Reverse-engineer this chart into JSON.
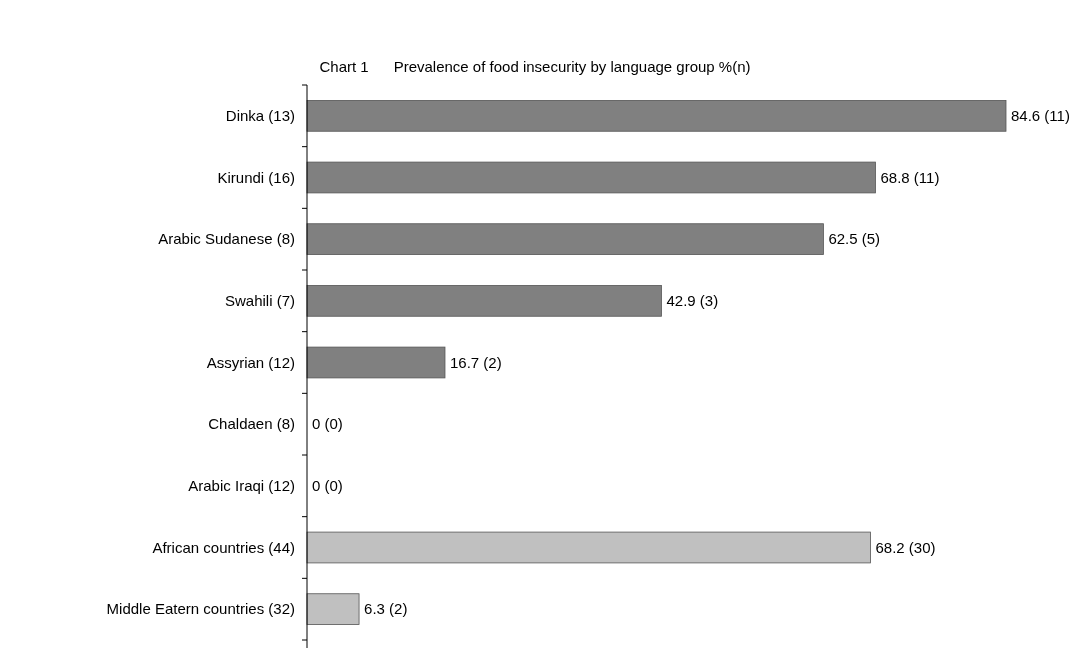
{
  "chart_data": {
    "type": "bar",
    "orientation": "horizontal",
    "title": "Chart 1      Prevalence of food insecurity by language group %(n)",
    "categories": [
      "Dinka (13)",
      "Kirundi (16)",
      "Arabic Sudanese (8)",
      "Swahili (7)",
      "Assyrian (12)",
      "Chaldaen (8)",
      "Arabic Iraqi (12)",
      "African countries (44)",
      "Middle Eatern countries (32)"
    ],
    "values": [
      84.6,
      68.8,
      62.5,
      42.9,
      16.7,
      0,
      0,
      68.2,
      6.3
    ],
    "colors": [
      "#808080",
      "#808080",
      "#808080",
      "#808080",
      "#808080",
      "#808080",
      "#808080",
      "#c0c0c0",
      "#c0c0c0"
    ],
    "value_labels": [
      "84.6 (11)",
      "68.8 (11)",
      "62.5 (5)",
      "42.9 (3)",
      "16.7 (2)",
      "0 (0)",
      "0 (0)",
      "68.2 (30)",
      "6.3 (2)"
    ]
  }
}
